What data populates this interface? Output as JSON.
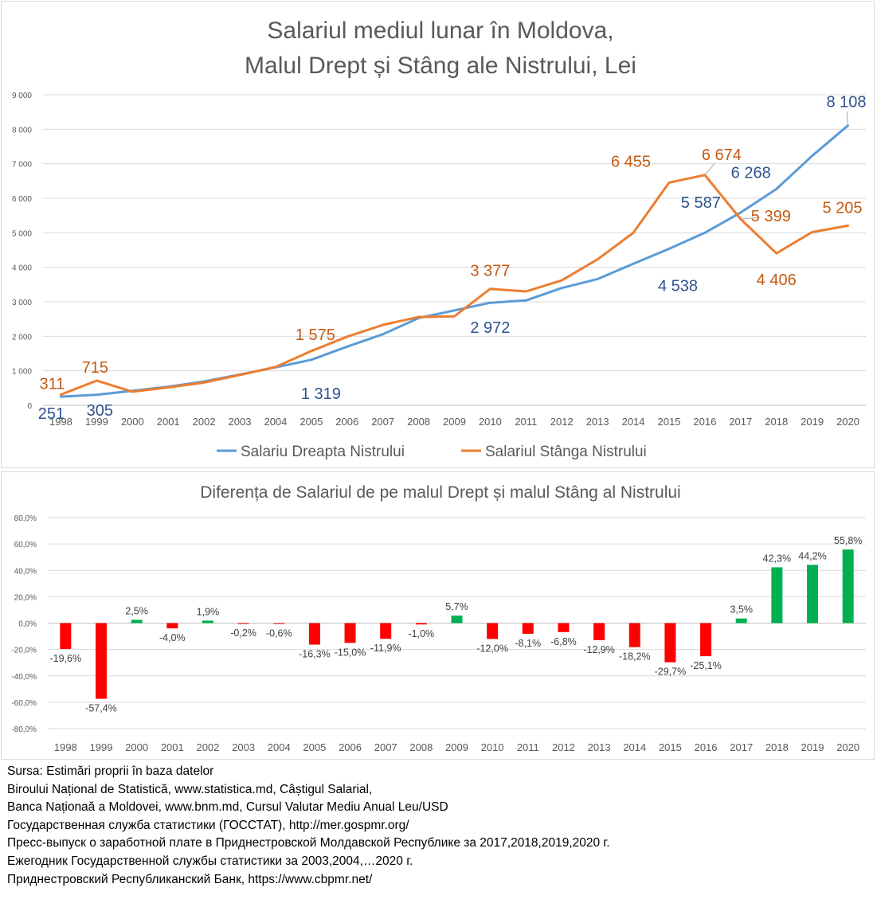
{
  "charts": {
    "colors": {
      "right_bank": "#5B9BD5",
      "left_bank": "#ED7D31",
      "right_bank_label": "#2F528F",
      "left_bank_label": "#C55A11",
      "negative_bar": "#FF0000",
      "positive_bar": "#00B050",
      "gridline": "#d9d9d9",
      "axis_text": "#595959",
      "title_text": "#595959"
    }
  },
  "chart_data": [
    {
      "type": "line",
      "title_line1": "Salariul mediul lunar în Moldova,",
      "title_line2": "Malul Drept și Stâng ale Nistrului,  Lei",
      "x": [
        "1998",
        "1999",
        "2000",
        "2001",
        "2002",
        "2003",
        "2004",
        "2005",
        "2006",
        "2007",
        "2008",
        "2009",
        "2010",
        "2011",
        "2012",
        "2013",
        "2014",
        "2015",
        "2016",
        "2017",
        "2018",
        "2019",
        "2020"
      ],
      "ylim": [
        0,
        9000
      ],
      "yticks": [
        0,
        1000,
        2000,
        3000,
        4000,
        5000,
        6000,
        7000,
        8000,
        9000
      ],
      "ytick_labels": [
        "0",
        "1 000",
        "2 000",
        "3 000",
        "4 000",
        "5 000",
        "6 000",
        "7 000",
        "8 000",
        "9 000"
      ],
      "grid": true,
      "legend_position": "bottom",
      "series": [
        {
          "name": "Salariu Dreapta Nistrului",
          "values": [
            251,
            305,
            420,
            540,
            690,
            890,
            1100,
            1319,
            1700,
            2060,
            2530,
            2750,
            2972,
            3040,
            3400,
            3660,
            4100,
            4538,
            5000,
            5587,
            6268,
            7230,
            8108
          ],
          "data_labels": [
            {
              "index": 0,
              "text": "251"
            },
            {
              "index": 1,
              "text": "305"
            },
            {
              "index": 7,
              "text": "1 319"
            },
            {
              "index": 12,
              "text": "2 972"
            },
            {
              "index": 17,
              "text": "4 538"
            },
            {
              "index": 19,
              "text": "5 587"
            },
            {
              "index": 20,
              "text": "6 268"
            },
            {
              "index": 22,
              "text": "8 108"
            }
          ]
        },
        {
          "name": "Salariul Stânga Nistrului",
          "values": [
            311,
            715,
            395,
            520,
            660,
            880,
            1110,
            1575,
            1990,
            2330,
            2560,
            2580,
            3377,
            3300,
            3620,
            4230,
            5000,
            6455,
            6674,
            5399,
            4406,
            5020,
            5205
          ],
          "data_labels": [
            {
              "index": 0,
              "text": "311"
            },
            {
              "index": 1,
              "text": "715"
            },
            {
              "index": 7,
              "text": "1 575"
            },
            {
              "index": 12,
              "text": "3 377"
            },
            {
              "index": 17,
              "text": "6 455"
            },
            {
              "index": 18,
              "text": "6 674"
            },
            {
              "index": 19,
              "text": "5 399"
            },
            {
              "index": 20,
              "text": "4 406"
            },
            {
              "index": 22,
              "text": "5 205"
            }
          ]
        }
      ]
    },
    {
      "type": "bar",
      "title": "Diferența de Salariul de pe malul Drept și malul Stâng al Nistrului",
      "categories": [
        "1998",
        "1999",
        "2000",
        "2001",
        "2002",
        "2003",
        "2004",
        "2005",
        "2006",
        "2007",
        "2008",
        "2009",
        "2010",
        "2011",
        "2012",
        "2013",
        "2014",
        "2015",
        "2016",
        "2017",
        "2018",
        "2019",
        "2020"
      ],
      "values": [
        -19.6,
        -57.4,
        2.5,
        -4.0,
        1.9,
        -0.2,
        -0.6,
        -16.3,
        -15.0,
        -11.9,
        -1.0,
        5.7,
        -12.0,
        -8.1,
        -6.8,
        -12.9,
        -18.2,
        -29.7,
        -25.1,
        3.5,
        42.3,
        44.2,
        55.8
      ],
      "value_labels": [
        "-19,6%",
        "-57,4%",
        "2,5%",
        "-4,0%",
        "1,9%",
        "-0,2%",
        "-0,6%",
        "-16,3%",
        "-15,0%",
        "-11,9%",
        "-1,0%",
        "5,7%",
        "-12,0%",
        "-8,1%",
        "-6,8%",
        "-12,9%",
        "-18,2%",
        "-29,7%",
        "-25,1%",
        "3,5%",
        "42,3%",
        "44,2%",
        "55,8%"
      ],
      "ylim": [
        -80,
        80
      ],
      "yticks": [
        -80,
        -60,
        -40,
        -20,
        0,
        20,
        40,
        60,
        80
      ],
      "ytick_labels": [
        "-80,0%",
        "-60,0%",
        "-40,0%",
        "-20,0%",
        "0,0%",
        "20,0%",
        "40,0%",
        "60,0%",
        "80,0%"
      ],
      "grid": true
    }
  ],
  "sources": [
    "Sursa: Estimări proprii în  baza datelor",
    "Biroului Național de Statistică, www.statistica.md, Câștigul Salarial,",
    "Banca Naționaă a Moldovei, www.bnm.md, Cursul Valutar Mediu Anual Leu/USD",
    "Государственная служба статистики (ГОССТАТ), http://mer.gospmr.org/",
    "Пресс-выпуск о заработной плате в Приднестровской Молдавской Республике за 2017,2018,2019,2020 г.",
    "Ежегодник Государственной службы статистики за 2003,2004,…2020 г.",
    "Приднестровский Республиканский Банк, https://www.cbpmr.net/"
  ]
}
